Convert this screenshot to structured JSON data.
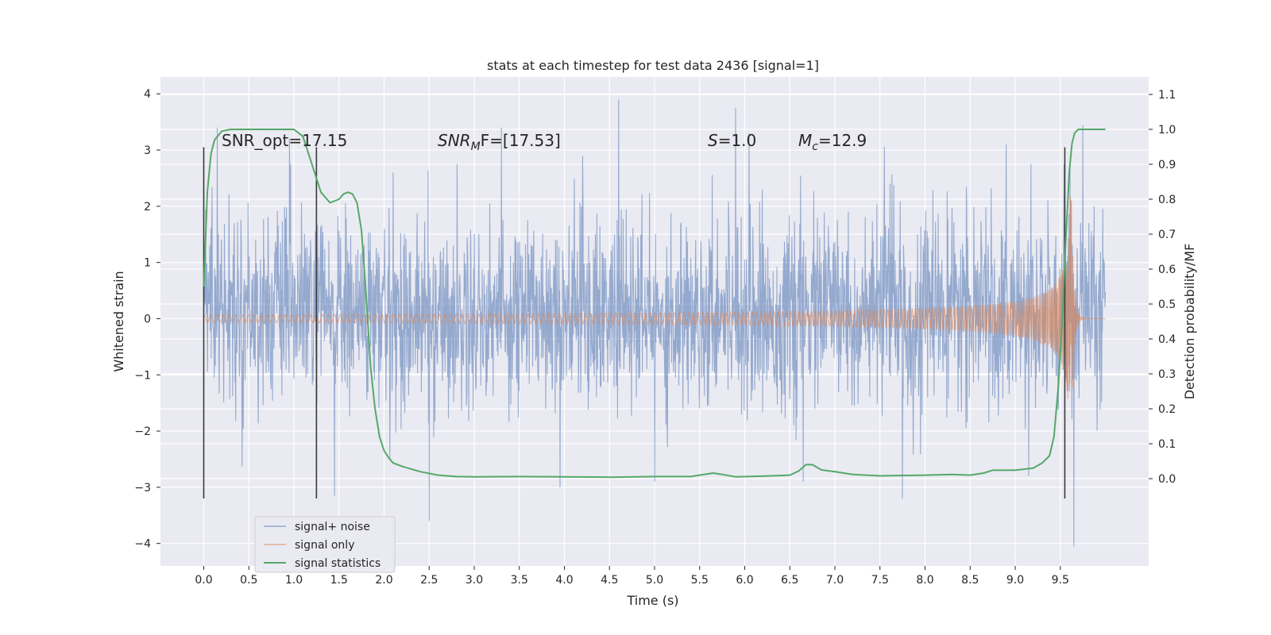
{
  "chart_data": {
    "type": "line",
    "title": "stats at each timestep for test data 2436 [signal=1]",
    "xlabel": "Time (s)",
    "ylabel": "Whitened strain",
    "ylabel_right": "Detection probability/MF",
    "xlim": [
      -0.48,
      10.48
    ],
    "ylim": [
      -4.4,
      4.3
    ],
    "ylim_right": [
      -0.25,
      1.15
    ],
    "x_ticks": [
      "0.0",
      "0.5",
      "1.0",
      "1.5",
      "2.0",
      "2.5",
      "3.0",
      "3.5",
      "4.0",
      "4.5",
      "5.0",
      "5.5",
      "6.0",
      "6.5",
      "7.0",
      "7.5",
      "8.0",
      "8.5",
      "9.0",
      "9.5"
    ],
    "y_ticks": [
      "−4",
      "−3",
      "−2",
      "−1",
      "0",
      "1",
      "2",
      "3",
      "4"
    ],
    "y_right_ticks": [
      "0.0",
      "0.1",
      "0.2",
      "0.3",
      "0.4",
      "0.5",
      "0.6",
      "0.7",
      "0.8",
      "0.9",
      "1.0",
      "1.1"
    ],
    "grid": true,
    "legend_position": "lower-left",
    "annotations": {
      "snr_opt": "SNR_opt=17.15",
      "snr_mf_sym": "SNR",
      "snr_mf_sub": "M",
      "snr_mf_rest": "F=[17.53]",
      "s_sym": "S",
      "s_rest": "=1.0",
      "mc_sym": "M",
      "mc_sub": "c",
      "mc_rest": "=12.9"
    },
    "vertical_markers": [
      {
        "x": 0.0,
        "y_from": -3.2,
        "y_to": 3.05
      },
      {
        "x": 1.25,
        "y_from": -3.2,
        "y_to": 3.05
      },
      {
        "x": 9.55,
        "y_from": -3.2,
        "y_to": 3.05
      }
    ],
    "series": [
      {
        "name": "signal+ noise",
        "color": "#4c72b0",
        "kind": "noise",
        "x_range": [
          0.0,
          10.0
        ],
        "typical_range": [
          -1.0,
          1.2
        ],
        "peaks": [
          {
            "x": 0.15,
            "y": 3.4
          },
          {
            "x": 0.95,
            "y": 3.2
          },
          {
            "x": 1.45,
            "y": -3.15
          },
          {
            "x": 2.1,
            "y": 2.6
          },
          {
            "x": 2.5,
            "y": -3.6
          },
          {
            "x": 3.3,
            "y": 3.4
          },
          {
            "x": 3.95,
            "y": -3.0
          },
          {
            "x": 4.2,
            "y": 2.9
          },
          {
            "x": 4.6,
            "y": 3.9
          },
          {
            "x": 5.0,
            "y": -2.9
          },
          {
            "x": 5.9,
            "y": 3.75
          },
          {
            "x": 6.05,
            "y": 3.3
          },
          {
            "x": 6.65,
            "y": -2.9
          },
          {
            "x": 7.55,
            "y": 3.05
          },
          {
            "x": 7.75,
            "y": -3.2
          },
          {
            "x": 8.9,
            "y": 3.1
          },
          {
            "x": 9.75,
            "y": 3.45
          },
          {
            "x": 9.65,
            "y": -4.05
          },
          {
            "x": 9.15,
            "y": -2.8
          }
        ]
      },
      {
        "name": "signal only",
        "color": "#dd8452",
        "kind": "chirp",
        "x_range": [
          0.0,
          10.0
        ],
        "merger_time": 9.62,
        "merger_amplitude": 2.5
      },
      {
        "name": "signal statistics",
        "color": "#55a868",
        "axis": "right",
        "kind": "curve",
        "x": [
          0.0,
          0.04,
          0.08,
          0.12,
          0.2,
          0.3,
          0.5,
          0.8,
          1.0,
          1.1,
          1.2,
          1.3,
          1.4,
          1.5,
          1.55,
          1.6,
          1.65,
          1.7,
          1.75,
          1.8,
          1.85,
          1.9,
          1.95,
          2.0,
          2.05,
          2.1,
          2.2,
          2.4,
          2.6,
          2.8,
          3.0,
          3.5,
          4.0,
          4.5,
          5.0,
          5.4,
          5.55,
          5.65,
          5.75,
          5.9,
          6.2,
          6.5,
          6.6,
          6.68,
          6.75,
          6.85,
          7.0,
          7.2,
          7.5,
          8.0,
          8.3,
          8.5,
          8.65,
          8.75,
          9.0,
          9.2,
          9.3,
          9.38,
          9.43,
          9.48,
          9.52,
          9.56,
          9.6,
          9.63,
          9.66,
          9.7,
          9.75,
          9.9,
          10.0
        ],
        "values": [
          0.55,
          0.82,
          0.93,
          0.97,
          0.995,
          1.0,
          1.0,
          1.0,
          1.0,
          0.98,
          0.9,
          0.82,
          0.79,
          0.8,
          0.815,
          0.82,
          0.815,
          0.79,
          0.71,
          0.53,
          0.32,
          0.2,
          0.12,
          0.08,
          0.06,
          0.045,
          0.035,
          0.02,
          0.01,
          0.006,
          0.005,
          0.006,
          0.005,
          0.004,
          0.006,
          0.006,
          0.012,
          0.016,
          0.012,
          0.005,
          0.007,
          0.01,
          0.022,
          0.04,
          0.04,
          0.025,
          0.02,
          0.012,
          0.008,
          0.01,
          0.012,
          0.01,
          0.016,
          0.024,
          0.024,
          0.03,
          0.045,
          0.065,
          0.12,
          0.27,
          0.45,
          0.68,
          0.88,
          0.96,
          0.99,
          1.0,
          1.0,
          1.0,
          1.0
        ]
      }
    ]
  }
}
